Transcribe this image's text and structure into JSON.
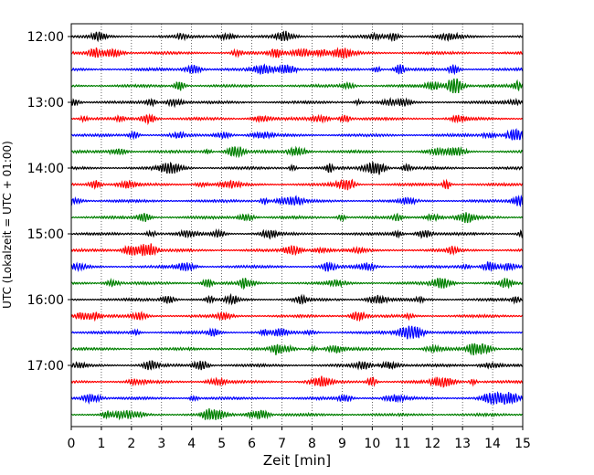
{
  "chart_data": {
    "type": "line",
    "title": "",
    "xlabel": "Zeit  [min]",
    "ylabel": "UTC (Lokalzeit = UTC + 01:00)",
    "xlim": [
      0,
      15
    ],
    "x_ticks": [
      "0",
      "1",
      "2",
      "3",
      "4",
      "5",
      "6",
      "7",
      "8",
      "9",
      "10",
      "11",
      "12",
      "13",
      "14",
      "15"
    ],
    "y_ticks": [
      "12:00",
      "13:00",
      "14:00",
      "15:00",
      "16:00",
      "17:00"
    ],
    "grid": "vertical dotted",
    "trace_colors": [
      "#000000",
      "#ff0000",
      "#0000ff",
      "#008000"
    ],
    "trace_interval_minutes": 15,
    "series": [
      {
        "start": "12:00",
        "color": "#000000"
      },
      {
        "start": "12:15",
        "color": "#ff0000"
      },
      {
        "start": "12:30",
        "color": "#0000ff"
      },
      {
        "start": "12:45",
        "color": "#008000"
      },
      {
        "start": "13:00",
        "color": "#000000"
      },
      {
        "start": "13:15",
        "color": "#ff0000"
      },
      {
        "start": "13:30",
        "color": "#0000ff"
      },
      {
        "start": "13:45",
        "color": "#008000"
      },
      {
        "start": "14:00",
        "color": "#000000"
      },
      {
        "start": "14:15",
        "color": "#ff0000"
      },
      {
        "start": "14:30",
        "color": "#0000ff"
      },
      {
        "start": "14:45",
        "color": "#008000"
      },
      {
        "start": "15:00",
        "color": "#000000"
      },
      {
        "start": "15:15",
        "color": "#ff0000"
      },
      {
        "start": "15:30",
        "color": "#0000ff"
      },
      {
        "start": "15:45",
        "color": "#008000"
      },
      {
        "start": "16:00",
        "color": "#000000"
      },
      {
        "start": "16:15",
        "color": "#ff0000"
      },
      {
        "start": "16:30",
        "color": "#0000ff"
      },
      {
        "start": "16:45",
        "color": "#008000"
      },
      {
        "start": "17:00",
        "color": "#000000"
      },
      {
        "start": "17:15",
        "color": "#ff0000"
      },
      {
        "start": "17:30",
        "color": "#0000ff"
      },
      {
        "start": "17:45",
        "color": "#008000"
      }
    ]
  }
}
